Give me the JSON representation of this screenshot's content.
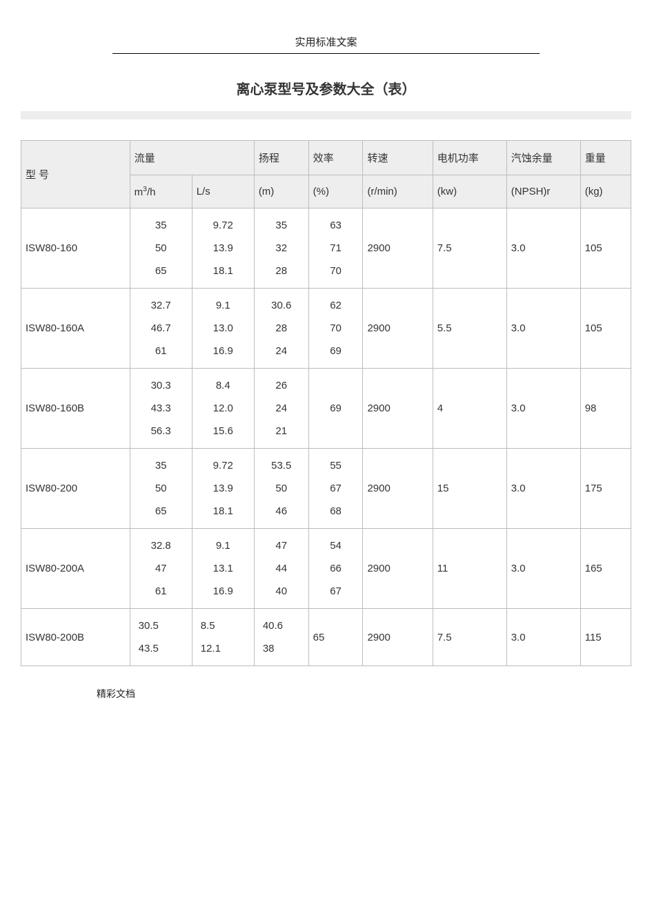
{
  "header_text": "实用标准文案",
  "title": "离心泵型号及参数大全（表）",
  "columns": {
    "model": "型 号",
    "flow": "流量",
    "flow_m3h_pre": "m",
    "flow_m3h_sup": "3",
    "flow_m3h_post": "/h",
    "flow_ls": "L/s",
    "head": "扬程",
    "head_unit": "(m)",
    "eff": "效率",
    "eff_unit": "(%)",
    "rpm": "转速",
    "rpm_unit": "(r/min)",
    "power": "电机功率",
    "power_unit": "(kw)",
    "npsh": "汽蚀余量",
    "npsh_unit": "(NPSH)r",
    "weight": "重量",
    "weight_unit": "(kg)"
  },
  "rows": [
    {
      "model": "ISW80-160",
      "flow_m3h": [
        "35",
        "50",
        "65"
      ],
      "flow_ls": [
        "9.72",
        "13.9",
        "18.1"
      ],
      "head": [
        "35",
        "32",
        "28"
      ],
      "eff": [
        "63",
        "71",
        "70"
      ],
      "rpm": "2900",
      "power": "7.5",
      "npsh": "3.0",
      "wt": "105"
    },
    {
      "model": "ISW80-160A",
      "flow_m3h": [
        "32.7",
        "46.7",
        "61"
      ],
      "flow_ls": [
        "9.1",
        "13.0",
        "16.9"
      ],
      "head": [
        "30.6",
        "28",
        "24"
      ],
      "eff": [
        "62",
        "70",
        "69"
      ],
      "rpm": "2900",
      "power": "5.5",
      "npsh": "3.0",
      "wt": "105"
    },
    {
      "model": "ISW80-160B",
      "flow_m3h": [
        "30.3",
        "43.3",
        "56.3"
      ],
      "flow_ls": [
        "8.4",
        "12.0",
        "15.6"
      ],
      "head": [
        "26",
        "24",
        "21"
      ],
      "eff": [
        "",
        "69",
        ""
      ],
      "rpm": "2900",
      "power": "4",
      "npsh": "3.0",
      "wt": "98"
    },
    {
      "model": "ISW80-200",
      "flow_m3h": [
        "35",
        "50",
        "65"
      ],
      "flow_ls": [
        "9.72",
        "13.9",
        "18.1"
      ],
      "head": [
        "53.5",
        "50",
        "46"
      ],
      "eff": [
        "55",
        "67",
        "68"
      ],
      "rpm": "2900",
      "power": "15",
      "npsh": "3.0",
      "wt": "175"
    },
    {
      "model": "ISW80-200A",
      "flow_m3h": [
        "32.8",
        "47",
        "61"
      ],
      "flow_ls": [
        "9.1",
        "13.1",
        "16.9"
      ],
      "head": [
        "47",
        "44",
        "40"
      ],
      "eff": [
        "54",
        "66",
        "67"
      ],
      "rpm": "2900",
      "power": "11",
      "npsh": "3.0",
      "wt": "165"
    },
    {
      "model": "ISW80-200B",
      "flow_m3h": [
        "30.5",
        "43.5"
      ],
      "flow_ls": [
        "8.5",
        "12.1"
      ],
      "head": [
        "40.6",
        "38"
      ],
      "eff": [
        "",
        "65"
      ],
      "eff_single": true,
      "rpm": "2900",
      "power": "7.5",
      "npsh": "3.0",
      "wt": "115",
      "inner_left": true
    }
  ],
  "footer": "精彩文档"
}
